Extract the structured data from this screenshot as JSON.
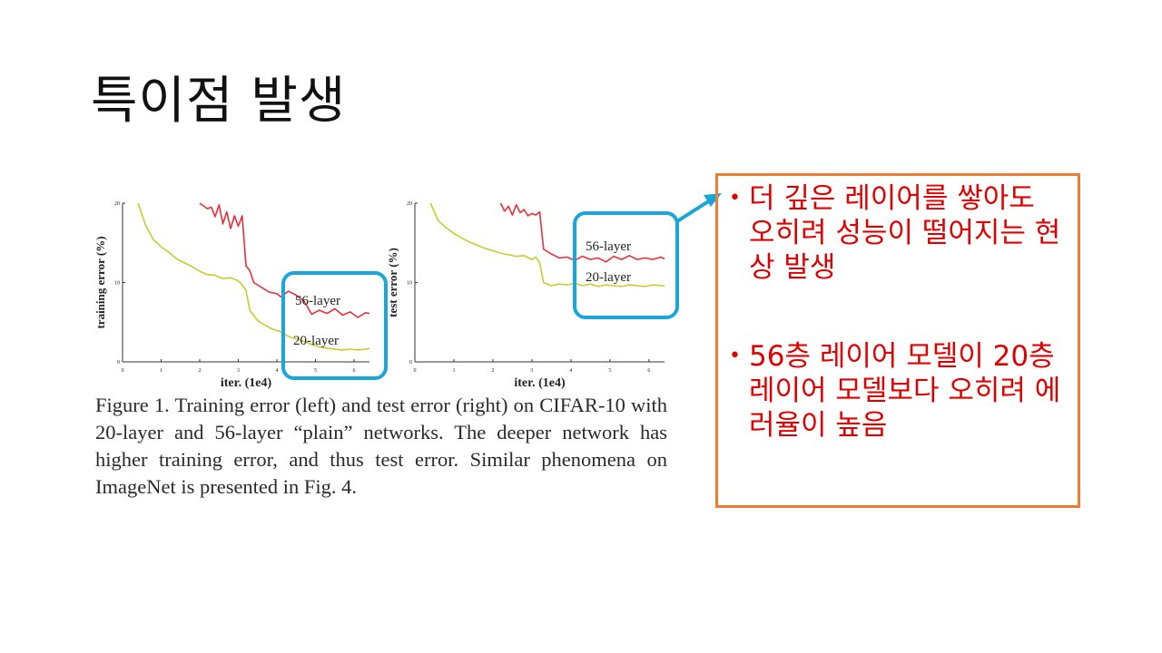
{
  "slide": {
    "title": "특이점 발생",
    "caption": "Figure 1. Training error (left) and test error (right) on CIFAR-10 with 20-layer and 56-layer “plain” networks. The deeper network has higher training error, and thus test error. Similar phenomena on ImageNet is presented in Fig. 4.",
    "notes": [
      "더 깊은 레이어를 쌓아도 오히려 성능이 떨어지는 현상 발생",
      "56층 레이어 모델이 20층 레이어 모델보다 오히려 에러율이 높음"
    ]
  },
  "colors": {
    "series_56": "#E8303A",
    "series_20": "#C7CC2E",
    "highlight": "#1AA5DB",
    "note_border": "#ED7D31",
    "note_text": "#E00000"
  },
  "chart_data": [
    {
      "type": "line",
      "title": "",
      "xlabel": "iter. (1e4)",
      "ylabel": "training error (%)",
      "xlim": [
        0,
        6.4
      ],
      "ylim": [
        0,
        20
      ],
      "xticks": [
        "0",
        "1",
        "2",
        "3",
        "4",
        "5",
        "6"
      ],
      "yticks": [
        "0",
        "10",
        "20"
      ],
      "series": [
        {
          "name": "56-layer",
          "x": [
            2.0,
            2.2,
            2.3,
            2.4,
            2.5,
            2.6,
            2.7,
            2.8,
            2.9,
            3.0,
            3.1,
            3.2,
            3.3,
            3.4,
            3.6,
            3.8,
            4.0,
            4.1,
            4.3,
            4.5,
            4.7,
            4.9,
            5.1,
            5.3,
            5.5,
            5.7,
            5.9,
            6.1,
            6.3,
            6.4
          ],
          "y": [
            20,
            19.3,
            19.5,
            18.3,
            19.8,
            17.4,
            18.9,
            16.8,
            18.4,
            17.1,
            18.4,
            12.1,
            11.5,
            10.0,
            9.4,
            8.8,
            8.6,
            8.2,
            8.9,
            8.4,
            7.7,
            6.0,
            6.5,
            6.1,
            6.7,
            5.9,
            6.3,
            5.6,
            6.2,
            6.1
          ]
        },
        {
          "name": "20-layer",
          "x": [
            0.4,
            0.6,
            0.8,
            1.0,
            1.2,
            1.4,
            1.6,
            1.8,
            2.0,
            2.2,
            2.4,
            2.6,
            2.8,
            3.0,
            3.1,
            3.2,
            3.3,
            3.5,
            3.7,
            3.9,
            4.1,
            4.3,
            4.5,
            4.7,
            4.9,
            5.1,
            5.3,
            5.5,
            5.7,
            5.9,
            6.1,
            6.3,
            6.4
          ],
          "y": [
            20,
            17.2,
            15.4,
            14.5,
            13.8,
            13.0,
            12.5,
            12.0,
            11.4,
            11.0,
            10.9,
            10.5,
            10.6,
            10.2,
            9.7,
            9.0,
            6.5,
            5.2,
            4.6,
            4.1,
            3.8,
            3.2,
            2.9,
            2.6,
            2.2,
            1.9,
            1.7,
            1.6,
            1.5,
            1.6,
            1.5,
            1.6,
            1.7
          ]
        }
      ]
    },
    {
      "type": "line",
      "title": "",
      "xlabel": "iter. (1e4)",
      "ylabel": "test error (%)",
      "xlim": [
        0,
        6.4
      ],
      "ylim": [
        0,
        20
      ],
      "xticks": [
        "0",
        "1",
        "2",
        "3",
        "4",
        "5",
        "6"
      ],
      "yticks": [
        "0",
        "10",
        "20"
      ],
      "series": [
        {
          "name": "56-layer",
          "x": [
            2.2,
            2.3,
            2.4,
            2.5,
            2.6,
            2.7,
            2.8,
            2.9,
            3.0,
            3.1,
            3.2,
            3.3,
            3.5,
            3.7,
            3.9,
            4.1,
            4.3,
            4.5,
            4.7,
            4.9,
            5.1,
            5.3,
            5.5,
            5.7,
            5.9,
            6.1,
            6.3,
            6.4
          ],
          "y": [
            20,
            19.0,
            19.6,
            18.5,
            19.8,
            18.8,
            19.2,
            18.4,
            18.7,
            18.5,
            18.9,
            14.2,
            13.6,
            13.1,
            13.2,
            12.8,
            13.3,
            12.9,
            13.1,
            12.6,
            13.3,
            12.9,
            13.4,
            12.9,
            13.1,
            12.9,
            13.2,
            13.0
          ]
        },
        {
          "name": "20-layer",
          "x": [
            0.4,
            0.6,
            0.8,
            1.0,
            1.2,
            1.4,
            1.6,
            1.8,
            2.0,
            2.2,
            2.4,
            2.6,
            2.8,
            3.0,
            3.1,
            3.2,
            3.3,
            3.5,
            3.7,
            3.9,
            4.1,
            4.3,
            4.5,
            4.7,
            4.9,
            5.1,
            5.3,
            5.5,
            5.7,
            5.9,
            6.1,
            6.3,
            6.4
          ],
          "y": [
            20,
            17.8,
            16.9,
            16.2,
            15.6,
            15.1,
            14.7,
            14.3,
            14.0,
            13.7,
            13.5,
            13.3,
            13.4,
            12.9,
            13.2,
            12.5,
            10.0,
            9.6,
            9.8,
            9.7,
            9.9,
            9.6,
            9.8,
            9.5,
            9.7,
            9.6,
            9.5,
            9.7,
            9.6,
            9.5,
            9.7,
            9.6,
            9.6
          ]
        }
      ]
    }
  ]
}
